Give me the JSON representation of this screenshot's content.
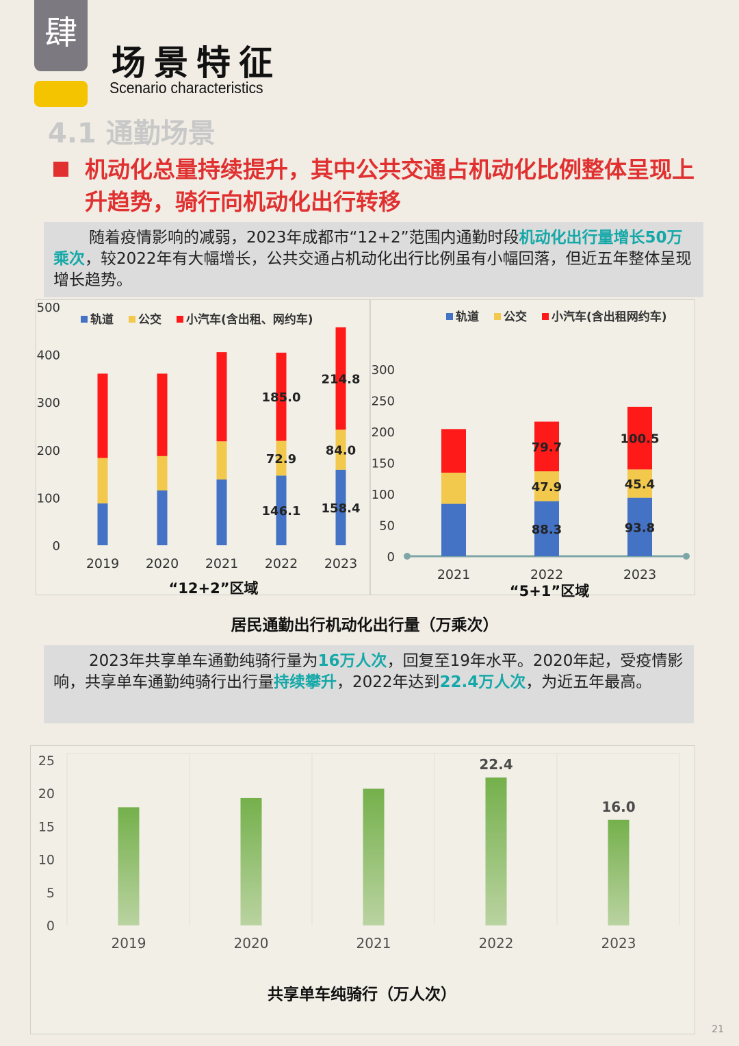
{
  "header": {
    "chapter_glyph": "肆",
    "title_cn": "场景特征",
    "title_en": "Scenario characteristics",
    "section": "4.1 通勤场景",
    "headline": "机动化总量持续提升，其中公共交通占机动化比例整体呈现上升趋势，骑行向机动化出行转移"
  },
  "paragraph1": {
    "before": "随着疫情影响的减弱，2023年成都市“12+2”范围内通勤时段",
    "highlight": "机动化出行量增长50万乘次",
    "after": "，较2022年有大幅增长，公共交通占机动化出行比例虽有小幅回落，但近五年整体呈现增长趋势。"
  },
  "paragraph2": {
    "p1": "2023年共享单车通勤纯骑行量为",
    "h1": "16万人次",
    "p2": "，回复至19年水平。2020年起，受疫情影响，共享单车通勤纯骑行出行量",
    "h2": "持续攀升",
    "p3": "，2022年达到",
    "h3": "22.4万人次",
    "p4": "，为近五年最高。"
  },
  "chart_data": [
    {
      "type": "bar",
      "stacked": true,
      "categories": [
        "2019",
        "2020",
        "2021",
        "2022",
        "2023"
      ],
      "series": [
        {
          "name": "轨道",
          "color": "#4472c4",
          "values": [
            88,
            115,
            138,
            146.1,
            158.4
          ]
        },
        {
          "name": "公交",
          "color": "#f2c94c",
          "values": [
            95,
            72,
            80,
            72.9,
            84.0
          ]
        },
        {
          "name": "小汽车(含出租、网约车)",
          "color": "#ff1a1a",
          "values": [
            177,
            173,
            187,
            185.0,
            214.8
          ]
        }
      ],
      "data_labels": {
        "3": [
          146.1,
          72.9,
          185.0
        ],
        "4": [
          158.4,
          84.0,
          214.8
        ]
      },
      "yticks": [
        0,
        100,
        200,
        300,
        400,
        500
      ],
      "ylim": [
        0,
        500
      ],
      "xlabel": "“12+2”区域",
      "legend": "top"
    },
    {
      "type": "bar",
      "stacked": true,
      "categories": [
        "2021",
        "2022",
        "2023"
      ],
      "series": [
        {
          "name": "轨道",
          "color": "#4472c4",
          "values": [
            84,
            88.3,
            93.8
          ]
        },
        {
          "name": "公交",
          "color": "#f2c94c",
          "values": [
            50,
            47.9,
            45.4
          ]
        },
        {
          "name": "小汽车(含出租网约车)",
          "color": "#ff1a1a",
          "values": [
            70,
            79.7,
            100.5
          ]
        }
      ],
      "data_labels": {
        "1": [
          88.3,
          47.9,
          79.7
        ],
        "2": [
          93.8,
          45.4,
          100.5
        ]
      },
      "yticks": [
        0,
        50,
        100,
        150,
        200,
        250,
        300
      ],
      "ylim": [
        0,
        300
      ],
      "xlabel": "“5+1”区域",
      "legend": "top-right"
    },
    {
      "type": "bar",
      "categories": [
        "2019",
        "2020",
        "2021",
        "2022",
        "2023"
      ],
      "values": [
        17.9,
        19.3,
        20.7,
        22.4,
        16.0
      ],
      "labeled": {
        "3": "22.4",
        "4": "16.0"
      },
      "yticks": [
        0,
        5,
        10,
        15,
        20,
        25
      ],
      "ylim": [
        0,
        25
      ],
      "color": "#62a633",
      "grid": true
    }
  ],
  "captions": {
    "chart_group1": "居民通勤出行机动化出行量（万乘次）",
    "chart3": "共享单车纯骑行（万人次）"
  },
  "page_number": "21"
}
